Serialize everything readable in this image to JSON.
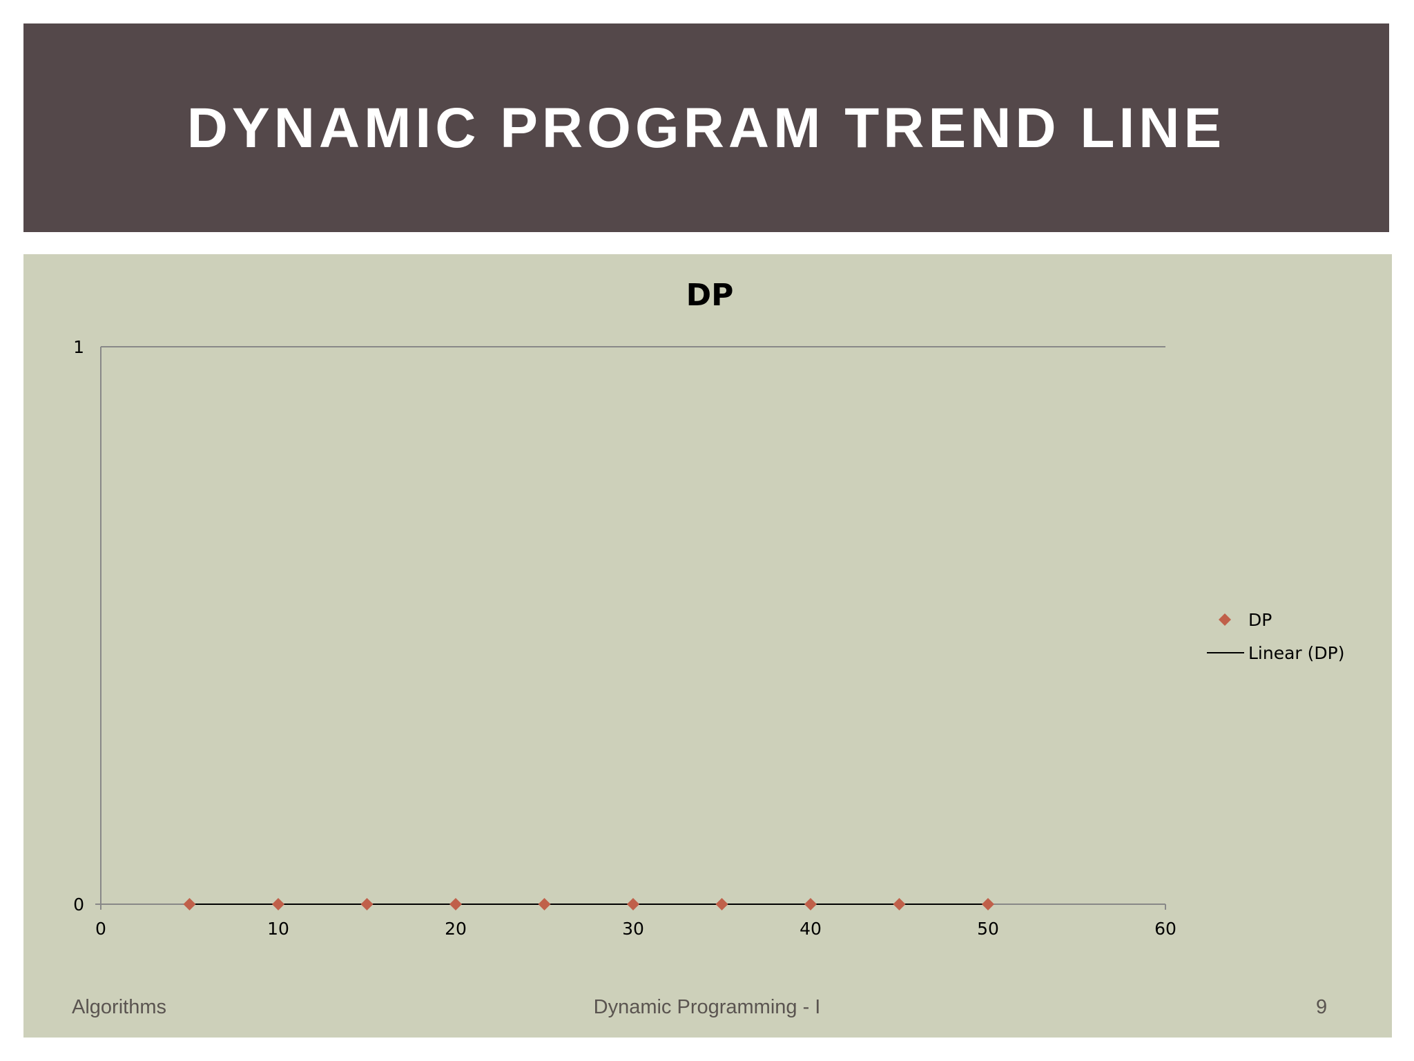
{
  "slide": {
    "title": "DYNAMIC PROGRAM TREND LINE",
    "footer_left": "Algorithms",
    "footer_center": "Dynamic Programming - I",
    "page_number": "9"
  },
  "colors": {
    "title_bar": "#54484a",
    "content_bg": "#cdd0ba",
    "marker": "#c0604a",
    "trend_line": "#000000",
    "axis": "#888888"
  },
  "chart_data": {
    "type": "scatter",
    "title": "DP",
    "xlabel": "",
    "ylabel": "",
    "xlim": [
      0,
      60
    ],
    "ylim": [
      0,
      1
    ],
    "x_ticks": [
      "0",
      "10",
      "20",
      "30",
      "40",
      "50",
      "60"
    ],
    "y_ticks": [
      "0",
      "1"
    ],
    "grid": "major horizontal",
    "legend_position": "right",
    "series": [
      {
        "name": "DP",
        "marker": "diamond",
        "x": [
          5,
          10,
          15,
          20,
          25,
          30,
          35,
          40,
          45,
          50
        ],
        "y": [
          0,
          0,
          0,
          0,
          0,
          0,
          0,
          0,
          0,
          0
        ]
      }
    ],
    "trendline": {
      "name": "Linear (DP)",
      "type": "linear",
      "x_range": [
        5,
        50
      ],
      "y": [
        0,
        0
      ]
    }
  }
}
